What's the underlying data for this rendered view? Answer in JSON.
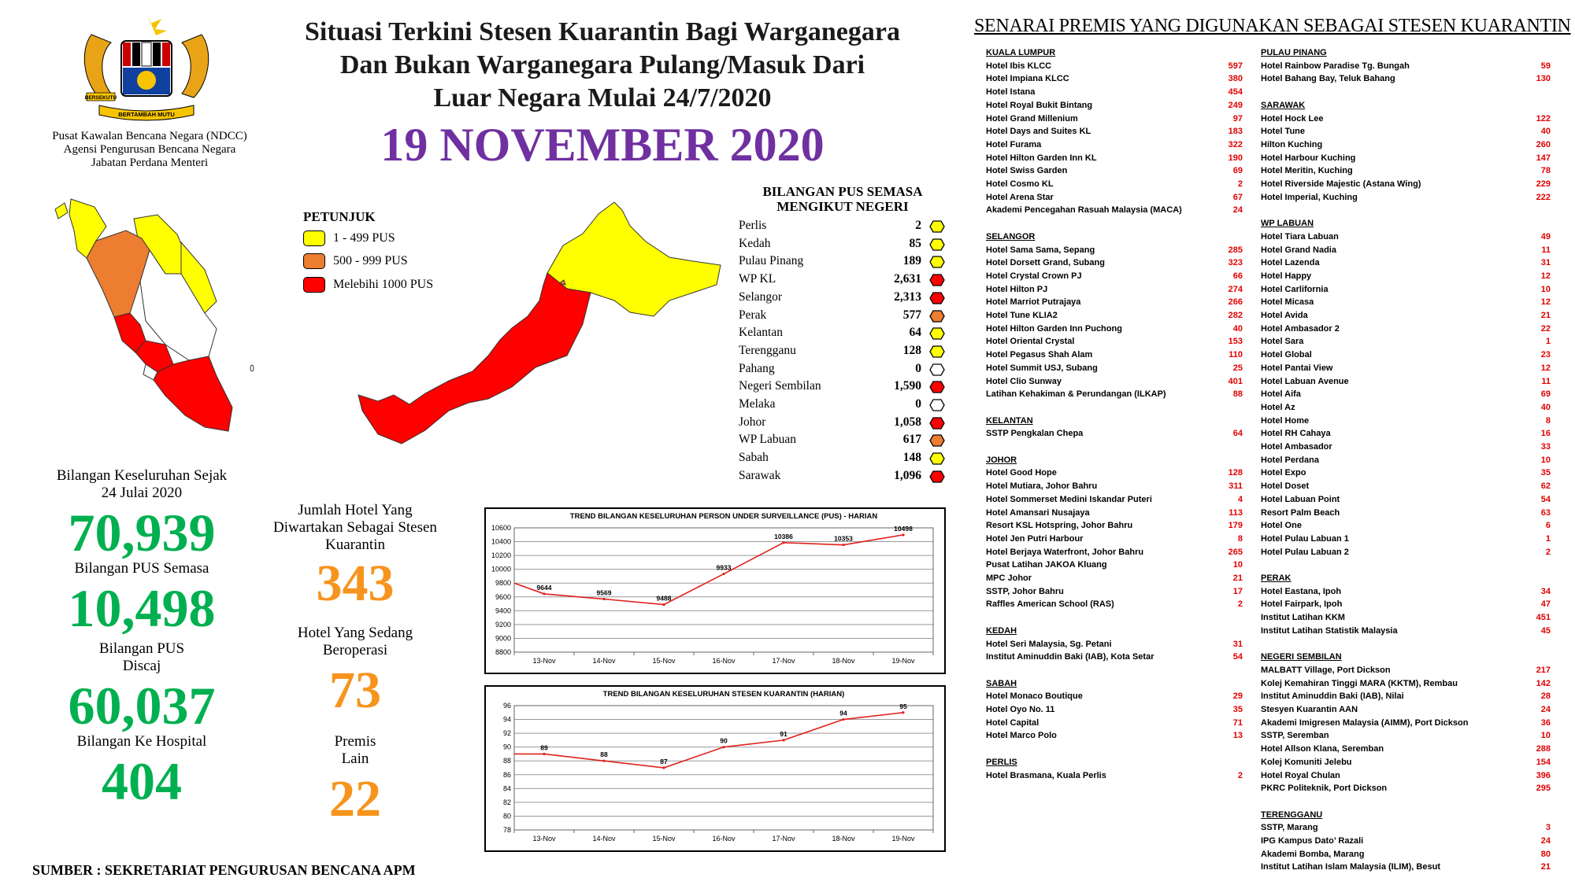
{
  "header": {
    "title_lines": [
      "Situasi Terkini Stesen Kuarantin Bagi Warganegara",
      "Dan Bukan Warganegara Pulang/Masuk Dari",
      "Luar Negara Mulai 24/7/2020"
    ],
    "date": "19 NOVEMBER 2020",
    "date_color": "#7030A0",
    "agency_lines": [
      "Pusat Kawalan Bencana Negara (NDCC)",
      "Agensi Pengurusan Bencana Negara",
      "Jabatan Perdana Menteri"
    ],
    "crest_text": [
      "BERSEKUTU",
      "BERTAMBAH MUTU"
    ]
  },
  "legend": {
    "title": "PETUNJUK",
    "items": [
      {
        "label": "1 - 499 PUS",
        "color": "#FFFF00"
      },
      {
        "label": "500 - 999 PUS",
        "color": "#ED7D31"
      },
      {
        "label": "Melebihi 1000 PUS",
        "color": "#FF0000"
      }
    ]
  },
  "states": {
    "title_lines": [
      "BILANGAN PUS SEMASA",
      "MENGIKUT NEGERI"
    ],
    "rows": [
      {
        "name": "Perlis",
        "value": "2",
        "color": "#FFFF00"
      },
      {
        "name": "Kedah",
        "value": "85",
        "color": "#FFFF00"
      },
      {
        "name": "Pulau Pinang",
        "value": "189",
        "color": "#FFFF00"
      },
      {
        "name": "WP KL",
        "value": "2,631",
        "color": "#FF0000"
      },
      {
        "name": "Selangor",
        "value": "2,313",
        "color": "#FF0000"
      },
      {
        "name": "Perak",
        "value": "577",
        "color": "#ED7D31"
      },
      {
        "name": "Kelantan",
        "value": "64",
        "color": "#FFFF00"
      },
      {
        "name": "Terengganu",
        "value": "128",
        "color": "#FFFF00"
      },
      {
        "name": "Pahang",
        "value": "0",
        "color": "#FFFFFF"
      },
      {
        "name": "Negeri Sembilan",
        "value": "1,590",
        "color": "#FF0000"
      },
      {
        "name": "Melaka",
        "value": "0",
        "color": "#FFFFFF"
      },
      {
        "name": "Johor",
        "value": "1,058",
        "color": "#FF0000"
      },
      {
        "name": "WP Labuan",
        "value": "617",
        "color": "#ED7D31"
      },
      {
        "name": "Sabah",
        "value": "148",
        "color": "#FFFF00"
      },
      {
        "name": "Sarawak",
        "value": "1,096",
        "color": "#FF0000"
      }
    ]
  },
  "stats_left": {
    "total_label_lines": [
      "Bilangan Keseluruhan Sejak",
      "24 Julai 2020"
    ],
    "total_value": "70,939",
    "current_label": "Bilangan PUS Semasa",
    "current_value": "10,498",
    "discharged_label_lines": [
      "Bilangan PUS",
      "Discaj"
    ],
    "discharged_value": "60,037",
    "hospital_label": "Bilangan Ke Hospital",
    "hospital_value": "404",
    "value_color": "#00B050"
  },
  "stats_mid": {
    "hotels_label_lines": [
      "Jumlah Hotel Yang",
      "Diwartakan Sebagai Stesen",
      "Kuarantin"
    ],
    "hotels_value": "343",
    "operating_label_lines": [
      "Hotel Yang Sedang",
      "Beroperasi"
    ],
    "operating_value": "73",
    "other_label_lines": [
      "Premis",
      "Lain"
    ],
    "other_value": "22",
    "value_color": "#F7941D"
  },
  "chart_data": [
    {
      "type": "line",
      "title": "TREND BILANGAN KESELURUHAN PERSON UNDER SURVEILLANCE (PUS) - HARIAN",
      "categories": [
        "13-Nov",
        "14-Nov",
        "15-Nov",
        "16-Nov",
        "17-Nov",
        "18-Nov",
        "19-Nov"
      ],
      "values": [
        9644,
        9569,
        9488,
        9933,
        10386,
        10353,
        10498
      ],
      "prior_value": 9800,
      "ylim": [
        8800,
        10600
      ],
      "yticks": [
        8800,
        9000,
        9200,
        9400,
        9600,
        9800,
        10000,
        10200,
        10400,
        10600
      ],
      "grid": true,
      "line_color": "#E0201B"
    },
    {
      "type": "line",
      "title": "TREND BILANGAN KESELURUHAN STESEN KUARANTIN (HARIAN)",
      "categories": [
        "13-Nov",
        "14-Nov",
        "15-Nov",
        "16-Nov",
        "17-Nov",
        "18-Nov",
        "19-Nov"
      ],
      "values": [
        89,
        88,
        87,
        90,
        91,
        94,
        95
      ],
      "prior_value": 89,
      "ylim": [
        78,
        96
      ],
      "yticks": [
        78,
        80,
        82,
        84,
        86,
        88,
        90,
        92,
        94,
        96
      ],
      "grid": true,
      "line_color": "#E0201B"
    }
  ],
  "premises": {
    "title": "SENARAI PREMIS YANG DIGUNAKAN SEBAGAI STESEN KUARANTIN",
    "columns": [
      [
        {
          "title": "KUALA LUMPUR",
          "items": [
            [
              "Hotel Ibis KLCC",
              "597"
            ],
            [
              "Hotel Impiana KLCC",
              "380"
            ],
            [
              "Hotel Istana",
              "454"
            ],
            [
              "Hotel Royal Bukit Bintang",
              "249"
            ],
            [
              "Hotel Grand Millenium",
              "97"
            ],
            [
              "Hotel Days and Suites KL",
              "183"
            ],
            [
              "Hotel Furama",
              "322"
            ],
            [
              "Hotel Hilton Garden Inn KL",
              "190"
            ],
            [
              "Hotel Swiss Garden",
              "69"
            ],
            [
              "Hotel Cosmo KL",
              "2"
            ],
            [
              "Hotel Arena Star",
              "67"
            ],
            [
              "Akademi Pencegahan Rasuah Malaysia (MACA)",
              "24"
            ]
          ]
        },
        {
          "title": "SELANGOR",
          "items": [
            [
              "Hotel Sama Sama, Sepang",
              "285"
            ],
            [
              "Hotel Dorsett Grand, Subang",
              "323"
            ],
            [
              "Hotel Crystal Crown PJ",
              "66"
            ],
            [
              "Hotel Hilton PJ",
              "274"
            ],
            [
              "Hotel Marriot Putrajaya",
              "266"
            ],
            [
              "Hotel Tune KLIA2",
              "282"
            ],
            [
              "Hotel Hilton Garden Inn Puchong",
              "40"
            ],
            [
              "Hotel Oriental Crystal",
              "153"
            ],
            [
              "Hotel Pegasus Shah Alam",
              "110"
            ],
            [
              "Hotel Summit USJ, Subang",
              "25"
            ],
            [
              "Hotel Clio Sunway",
              "401"
            ],
            [
              "Latihan Kehakiman & Perundangan (ILKAP)",
              "88"
            ]
          ]
        },
        {
          "title": "KELANTAN",
          "items": [
            [
              "SSTP Pengkalan Chepa",
              "64"
            ]
          ]
        },
        {
          "title": "JOHOR",
          "items": [
            [
              "Hotel Good Hope",
              "128"
            ],
            [
              "Hotel Mutiara, Johor Bahru",
              "311"
            ],
            [
              "Hotel Sommerset Medini Iskandar Puteri",
              "4"
            ],
            [
              "Hotel Amansari Nusajaya",
              "113"
            ],
            [
              "Resort KSL Hotspring, Johor Bahru",
              "179"
            ],
            [
              "Hotel Jen Putri Harbour",
              "8"
            ],
            [
              "Hotel Berjaya Waterfront, Johor Bahru",
              "265"
            ],
            [
              "Pusat Latihan JAKOA Kluang",
              "10"
            ],
            [
              "MPC Johor",
              "21"
            ],
            [
              "SSTP, Johor Bahru",
              "17"
            ],
            [
              "Raffles American School (RAS)",
              "2"
            ]
          ]
        },
        {
          "title": "KEDAH",
          "items": [
            [
              "Hotel Seri Malaysia, Sg. Petani",
              "31"
            ],
            [
              "Institut Aminuddin  Baki (IAB), Kota Setar",
              "54"
            ]
          ]
        },
        {
          "title": "SABAH",
          "items": [
            [
              "Hotel Monaco Boutique",
              "29"
            ],
            [
              "Hotel Oyo No. 11",
              "35"
            ],
            [
              "Hotel Capital",
              "71"
            ],
            [
              "Hotel Marco Polo",
              "13"
            ]
          ]
        },
        {
          "title": "PERLIS",
          "items": [
            [
              "Hotel Brasmana, Kuala Perlis",
              "2"
            ]
          ]
        }
      ],
      [
        {
          "title": "PULAU PINANG",
          "items": [
            [
              "Hotel Rainbow Paradise Tg. Bungah",
              "59"
            ],
            [
              "Hotel Bahang Bay, Teluk Bahang",
              "130"
            ]
          ]
        },
        {
          "title": "SARAWAK",
          "items": [
            [
              "Hotel Hock Lee",
              "122"
            ],
            [
              "Hotel Tune",
              "40"
            ],
            [
              "Hilton Kuching",
              "260"
            ],
            [
              "Hotel Harbour Kuching",
              "147"
            ],
            [
              "Hotel Meritin, Kuching",
              "78"
            ],
            [
              "Hotel Riverside Majestic (Astana Wing)",
              "229"
            ],
            [
              "Hotel Imperial, Kuching",
              "222"
            ]
          ]
        },
        {
          "title": "WP LABUAN",
          "items": [
            [
              "Hotel Tiara Labuan",
              "49"
            ],
            [
              "Hotel Grand Nadia",
              "11"
            ],
            [
              "Hotel Lazenda",
              "31"
            ],
            [
              "Hotel Happy",
              "12"
            ],
            [
              "Hotel Carlifornia",
              "10"
            ],
            [
              "Hotel Micasa",
              "12"
            ],
            [
              "Hotel Avida",
              "21"
            ],
            [
              "Hotel Ambasador 2",
              "22"
            ],
            [
              "Hotel Sara",
              "1"
            ],
            [
              "Hotel Global",
              "23"
            ],
            [
              "Hotel Pantai View",
              "12"
            ],
            [
              "Hotel Labuan Avenue",
              "11"
            ],
            [
              "Hotel Aifa",
              "69"
            ],
            [
              "Hotel Az",
              "40"
            ],
            [
              "Hotel Home",
              "8"
            ],
            [
              "Hotel RH Cahaya",
              "16"
            ],
            [
              "Hotel Ambasador",
              "33"
            ],
            [
              "Hotel Perdana",
              "10"
            ],
            [
              "Hotel Expo",
              "35"
            ],
            [
              "Hotel Doset",
              "62"
            ],
            [
              "Hotel Labuan Point",
              "54"
            ],
            [
              "Resort Palm Beach",
              "63"
            ],
            [
              "Hotel One",
              "6"
            ],
            [
              "Hotel Pulau Labuan 1",
              "1"
            ],
            [
              "Hotel Pulau Labuan 2",
              "2"
            ]
          ]
        },
        {
          "title": "PERAK",
          "items": [
            [
              "Hotel Eastana, Ipoh",
              "34"
            ],
            [
              "Hotel Fairpark, Ipoh",
              "47"
            ],
            [
              "Institut Latihan KKM",
              "451"
            ],
            [
              "Institut Latihan Statistik Malaysia",
              "45"
            ]
          ]
        },
        {
          "title": "NEGERI SEMBILAN",
          "items": [
            [
              "MALBATT Village, Port Dickson",
              "217"
            ],
            [
              "Kolej Kemahiran Tinggi MARA (KKTM), Rembau",
              "142"
            ],
            [
              "Institut Aminuddin  Baki (IAB), Nilai",
              "28"
            ],
            [
              "Stesyen Kuarantin AAN",
              "24"
            ],
            [
              "Akademi Imigresen Malaysia (AIMM), Port Dickson",
              "36"
            ],
            [
              "SSTP, Seremban",
              "10"
            ],
            [
              "Hotel Allson Klana, Seremban",
              "288"
            ],
            [
              "Kolej Komuniti Jelebu",
              "154"
            ],
            [
              "Hotel Royal Chulan",
              "396"
            ],
            [
              "PKRC Politeknik, Port Dickson",
              "295"
            ]
          ]
        },
        {
          "title": "TERENGGANU",
          "items": [
            [
              "SSTP, Marang",
              "3"
            ],
            [
              "IPG Kampus Dato’ Razali",
              "24"
            ],
            [
              "Akademi Bomba, Marang",
              "80"
            ],
            [
              "Institut Latihan Islam Malaysia (ILIM), Besut",
              "21"
            ]
          ]
        }
      ]
    ]
  },
  "footer": {
    "source": "SUMBER : SEKRETARIAT PENGURUSAN BENCANA APM"
  }
}
